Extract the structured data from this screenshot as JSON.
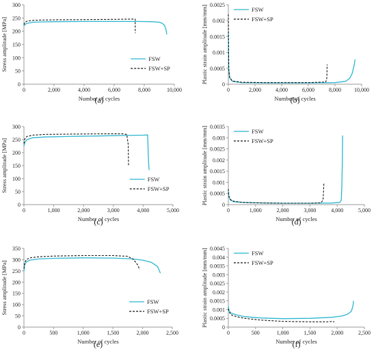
{
  "colors": {
    "fsw": "#2bb5cf",
    "fsw_sp": "#111111",
    "axis": "#9a9a9a"
  },
  "chart_data": [
    {
      "panel": "(a)",
      "type": "line",
      "xlabel": "Number of cycles",
      "ylabel": "Stress amplitude [MPa]",
      "xlim": [
        0,
        10000
      ],
      "ylim": [
        0,
        300
      ],
      "xticks": [
        0,
        2000,
        4000,
        6000,
        8000,
        10000
      ],
      "xtick_labels": [
        "0",
        "2,000",
        "4,000",
        "6,000",
        "8,000",
        "10,000"
      ],
      "yticks": [
        0,
        50,
        100,
        150,
        200,
        250,
        300
      ],
      "ytick_labels": [
        "0",
        "50",
        "100",
        "150",
        "200",
        "250",
        "300"
      ],
      "legend": [
        "FSW",
        "FSW+SP"
      ],
      "legend_position": "bottom-right",
      "series": [
        {
          "name": "FSW",
          "style": "solid",
          "x": [
            1,
            50,
            200,
            600,
            1000,
            2000,
            4000,
            6000,
            7500,
            8500,
            9000,
            9200,
            9350,
            9450,
            9500
          ],
          "y": [
            220,
            225,
            230,
            234,
            235,
            236,
            237,
            237,
            237,
            236,
            234,
            230,
            222,
            205,
            188
          ]
        },
        {
          "name": "FSW+SP",
          "style": "dashed",
          "x": [
            1,
            50,
            200,
            600,
            1000,
            2000,
            4000,
            6000,
            7000,
            7400,
            7400,
            7410
          ],
          "y": [
            225,
            233,
            238,
            241,
            242,
            243,
            244,
            245,
            246,
            246,
            210,
            193
          ]
        }
      ]
    },
    {
      "panel": "(b)",
      "type": "line",
      "xlabel": "Number of cycles",
      "ylabel": "Plastic strain amplitude [mm/mm]",
      "xlim": [
        0,
        10000
      ],
      "ylim": [
        0,
        0.0025
      ],
      "xticks": [
        0,
        2000,
        4000,
        6000,
        8000,
        10000
      ],
      "xtick_labels": [
        "0",
        "2,000",
        "4,000",
        "6,000",
        "8,000",
        "10,000"
      ],
      "yticks": [
        0,
        0.0005,
        0.001,
        0.0015,
        0.002,
        0.0025
      ],
      "ytick_labels": [
        "0",
        "0.0005",
        "0.001",
        "0.0015",
        "0.002",
        "0.0025"
      ],
      "legend": [
        "FSW",
        "FSW+SP"
      ],
      "legend_position": "top-left",
      "series": [
        {
          "name": "FSW",
          "style": "solid",
          "x": [
            1,
            30,
            100,
            300,
            1000,
            3000,
            6000,
            8000,
            8800,
            9100,
            9300,
            9450,
            9500
          ],
          "y": [
            0.0016,
            0.00045,
            0.0002,
            9e-05,
            5e-05,
            4e-05,
            4e-05,
            5e-05,
            9e-05,
            0.00018,
            0.00035,
            0.00062,
            0.00078
          ]
        },
        {
          "name": "FSW+SP",
          "style": "dashed",
          "x": [
            1,
            30,
            100,
            300,
            1000,
            3000,
            6000,
            7300,
            7380,
            7400,
            7410
          ],
          "y": [
            0.0022,
            0.0005,
            0.00022,
            0.0001,
            6e-05,
            5e-05,
            5e-05,
            7e-05,
            0.00015,
            0.00035,
            0.00062
          ]
        }
      ]
    },
    {
      "panel": "(c)",
      "type": "line",
      "xlabel": "Number of cycles",
      "ylabel": "Stress amplitude [MPa]",
      "xlim": [
        0,
        5000
      ],
      "ylim": [
        0,
        300
      ],
      "xticks": [
        0,
        1000,
        2000,
        3000,
        4000,
        5000
      ],
      "xtick_labels": [
        "0",
        "1,000",
        "2,000",
        "3,000",
        "4,000",
        "5,000"
      ],
      "yticks": [
        0,
        50,
        100,
        150,
        200,
        250,
        300
      ],
      "ytick_labels": [
        "0",
        "50",
        "100",
        "150",
        "200",
        "250",
        "300"
      ],
      "legend": [
        "FSW",
        "FSW+SP"
      ],
      "legend_position": "bottom-right",
      "series": [
        {
          "name": "FSW",
          "style": "solid",
          "x": [
            1,
            30,
            100,
            300,
            700,
            1500,
            2500,
            3500,
            4000,
            4150,
            4160,
            4180,
            4200
          ],
          "y": [
            225,
            238,
            250,
            257,
            260,
            262,
            264,
            266,
            267,
            268,
            230,
            170,
            133
          ]
        },
        {
          "name": "FSW+SP",
          "style": "dashed",
          "x": [
            1,
            30,
            100,
            300,
            700,
            1500,
            2500,
            3300,
            3450,
            3500,
            3510
          ],
          "y": [
            235,
            253,
            262,
            267,
            270,
            271,
            272,
            272,
            270,
            230,
            148
          ]
        }
      ]
    },
    {
      "panel": "(d)",
      "type": "line",
      "xlabel": "Number of cycles",
      "ylabel": "Plastic strain amplitude [mm/mm]",
      "xlim": [
        0,
        5000
      ],
      "ylim": [
        0,
        0.0035
      ],
      "xticks": [
        0,
        1000,
        2000,
        3000,
        4000,
        5000
      ],
      "xtick_labels": [
        "0",
        "1,000",
        "2,000",
        "3,000",
        "4,000",
        "5,000"
      ],
      "yticks": [
        0,
        0.0005,
        0.001,
        0.0015,
        0.002,
        0.0025,
        0.003,
        0.0035
      ],
      "ytick_labels": [
        "0",
        "0.0005",
        "0.001",
        "0.0015",
        "0.002",
        "0.0025",
        "0.003",
        "0.0035"
      ],
      "legend": [
        "FSW",
        "FSW+SP"
      ],
      "legend_position": "top-left",
      "series": [
        {
          "name": "FSW",
          "style": "solid",
          "x": [
            1,
            20,
            80,
            200,
            500,
            1000,
            2000,
            3000,
            3800,
            4100,
            4150,
            4170,
            4190,
            4200
          ],
          "y": [
            0.0006,
            0.00035,
            0.0002,
            0.00013,
            0.0001,
            8e-05,
            6e-05,
            6e-05,
            7e-05,
            0.0001,
            0.0002,
            0.0008,
            0.002,
            0.0031
          ]
        },
        {
          "name": "FSW+SP",
          "style": "dashed",
          "x": [
            1,
            20,
            80,
            200,
            500,
            1000,
            2000,
            3000,
            3400,
            3480,
            3500,
            3510
          ],
          "y": [
            0.0007,
            0.00038,
            0.00022,
            0.00015,
            0.0001,
            8e-05,
            6e-05,
            6e-05,
            8e-05,
            0.0002,
            0.0006,
            0.00095
          ]
        }
      ]
    },
    {
      "panel": "(e)",
      "type": "line",
      "xlabel": "Number of cycles",
      "ylabel": "Stress amplitude [MPa]",
      "xlim": [
        0,
        2500
      ],
      "ylim": [
        0,
        350
      ],
      "xticks": [
        0,
        500,
        1000,
        1500,
        2000,
        2500
      ],
      "xtick_labels": [
        "0",
        "500",
        "1,000",
        "1,500",
        "2,000",
        "2,500"
      ],
      "yticks": [
        0,
        50,
        100,
        150,
        200,
        250,
        300,
        350
      ],
      "ytick_labels": [
        "0",
        "50",
        "100",
        "150",
        "200",
        "250",
        "300",
        "350"
      ],
      "legend": [
        "FSW",
        "FSW+SP"
      ],
      "legend_position": "bottom-right",
      "series": [
        {
          "name": "FSW",
          "style": "solid",
          "x": [
            1,
            10,
            40,
            100,
            250,
            500,
            1000,
            1500,
            1800,
            2000,
            2150,
            2250,
            2300
          ],
          "y": [
            250,
            275,
            290,
            298,
            303,
            306,
            308,
            307,
            304,
            298,
            288,
            270,
            240
          ]
        },
        {
          "name": "FSW+SP",
          "style": "dashed",
          "x": [
            1,
            10,
            40,
            100,
            250,
            500,
            1000,
            1500,
            1750,
            1850,
            1920,
            1950
          ],
          "y": [
            260,
            285,
            300,
            308,
            313,
            316,
            318,
            318,
            315,
            300,
            275,
            255
          ]
        }
      ]
    },
    {
      "panel": "(f)",
      "type": "line",
      "xlabel": "Number of cycles",
      "ylabel": "Plastic strain amplitude [mm/mm]",
      "xlim": [
        0,
        2500
      ],
      "ylim": [
        0,
        0.0045
      ],
      "xticks": [
        0,
        500,
        1000,
        1500,
        2000,
        2500
      ],
      "xtick_labels": [
        "0",
        "500",
        "1,000",
        "1,500",
        "2,000",
        "2,500"
      ],
      "yticks": [
        0,
        0.0005,
        0.001,
        0.0015,
        0.002,
        0.0025,
        0.003,
        0.0035,
        0.004,
        0.0045
      ],
      "ytick_labels": [
        "0",
        "0.0005",
        "0.001",
        "0.0015",
        "0.002",
        "0.0025",
        "0.003",
        "0.0035",
        "0.004",
        "0.0045"
      ],
      "legend": [
        "FSW",
        "FSW+SP"
      ],
      "legend_position": "top-left",
      "series": [
        {
          "name": "FSW",
          "style": "solid",
          "x": [
            1,
            10,
            50,
            150,
            300,
            600,
            1000,
            1500,
            1900,
            2100,
            2200,
            2260,
            2290,
            2300
          ],
          "y": [
            0.0012,
            0.00095,
            0.0008,
            0.0007,
            0.0006,
            0.00052,
            0.00048,
            0.0005,
            0.00056,
            0.00064,
            0.00075,
            0.0009,
            0.0012,
            0.0015
          ]
        },
        {
          "name": "FSW+SP",
          "style": "dashed",
          "x": [
            1,
            10,
            50,
            150,
            300,
            600,
            1000,
            1500,
            1800,
            1900,
            1950
          ],
          "y": [
            0.00105,
            0.0009,
            0.0007,
            0.0006,
            0.0005,
            0.0004,
            0.00033,
            0.0003,
            0.0003,
            0.00032,
            0.0003
          ]
        }
      ]
    }
  ]
}
